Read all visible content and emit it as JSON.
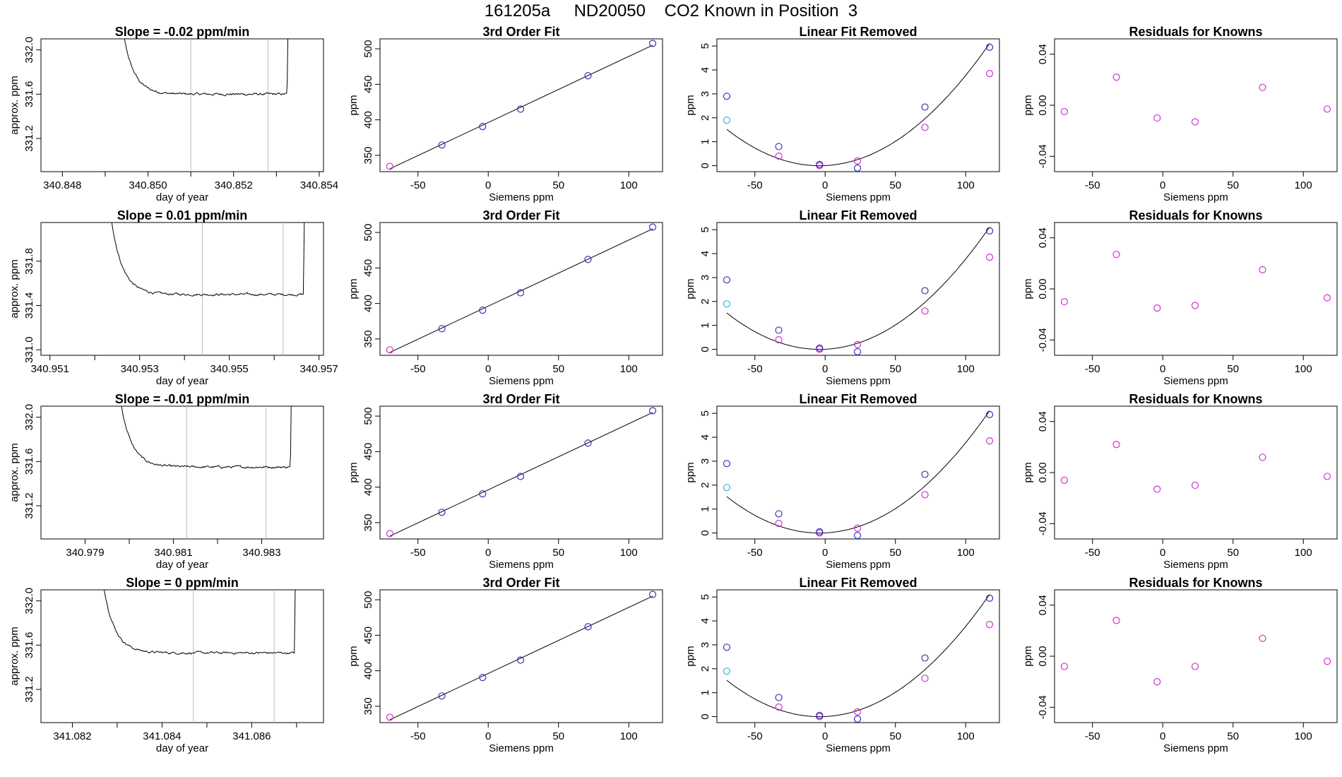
{
  "title": "161205a     ND20050    CO2 Known in Position  3",
  "colors": {
    "line": "#000000",
    "pink": "#cc33cc",
    "cyan": "#22bbdd",
    "blue": "#3333bb",
    "grid": "#bbbbbb",
    "red": "#cc2222"
  },
  "chart_data": {
    "type": "multi",
    "rows": [
      {
        "time_series": {
          "title": "Slope =  -0.02  ppm/min",
          "xlabel": "day of year",
          "ylabel": "approx. ppm",
          "xlim": [
            340.8475,
            340.8541
          ],
          "ylim": [
            330.9,
            332.1
          ],
          "xticks": [
            340.848,
            340.849,
            340.85,
            340.851,
            340.852,
            340.853,
            340.854
          ],
          "xticklabels": [
            "340.848",
            "",
            "340.850",
            "",
            "340.852",
            "",
            "340.854"
          ],
          "yticks": [
            331.2,
            331.6,
            332.0
          ],
          "yticklabels": [
            "331.2",
            "331.6",
            "332.0"
          ],
          "vlines": [
            340.851,
            340.8528
          ],
          "curve": {
            "t0": 340.8493,
            "t1": 340.8533,
            "level": 331.6,
            "drop": 0.9,
            "tau": 0.00025,
            "rise_start": 340.85325,
            "jitter": 0.01
          }
        },
        "fit": {
          "title": "3rd Order Fit"
        },
        "linear_removed": {
          "title": "Linear Fit Removed"
        },
        "residuals": {
          "title": "Residuals for Knowns",
          "y": [
            -0.005,
            0.022,
            -0.01,
            -0.013,
            0.014,
            -0.003
          ]
        }
      },
      {
        "time_series": {
          "title": "Slope =  0.01  ppm/min",
          "xlabel": "day of year",
          "ylabel": "approx. ppm",
          "xlim": [
            340.9508,
            340.9571
          ],
          "ylim": [
            330.95,
            332.15
          ],
          "xticks": [
            340.951,
            340.952,
            340.953,
            340.954,
            340.955,
            340.956,
            340.957
          ],
          "xticklabels": [
            "340.951",
            "",
            "340.953",
            "",
            "340.955",
            "",
            "340.957"
          ],
          "yticks": [
            331.0,
            331.4,
            331.8
          ],
          "yticklabels": [
            "331.0",
            "331.4",
            "331.8"
          ],
          "vlines": [
            340.9544,
            340.9562
          ],
          "curve": {
            "t0": 340.9523,
            "t1": 340.9567,
            "level": 331.5,
            "drop": 0.9,
            "tau": 0.00025,
            "rise_start": 340.95665,
            "jitter": 0.01
          }
        },
        "fit": {
          "title": "3rd Order Fit"
        },
        "linear_removed": {
          "title": "Linear Fit Removed"
        },
        "residuals": {
          "title": "Residuals for Knowns",
          "y": [
            -0.01,
            0.027,
            -0.015,
            -0.013,
            0.015,
            -0.007
          ]
        }
      },
      {
        "time_series": {
          "title": "Slope =  -0.01  ppm/min",
          "xlabel": "day of year",
          "ylabel": "approx. ppm",
          "xlim": [
            340.978,
            340.9844
          ],
          "ylim": [
            330.9,
            332.1
          ],
          "xticks": [
            340.979,
            340.98,
            340.981,
            340.982,
            340.983
          ],
          "xticklabels": [
            "340.979",
            "",
            "340.981",
            "",
            "340.983"
          ],
          "yticks": [
            331.2,
            331.6,
            332.0
          ],
          "yticklabels": [
            "331.2",
            "331.6",
            "332.0"
          ],
          "vlines": [
            340.9813,
            340.9831
          ],
          "curve": {
            "t0": 340.9797,
            "t1": 340.9837,
            "level": 331.55,
            "drop": 0.9,
            "tau": 0.00025,
            "rise_start": 340.98365,
            "jitter": 0.01
          }
        },
        "fit": {
          "title": "3rd Order Fit"
        },
        "linear_removed": {
          "title": "Linear Fit Removed"
        },
        "residuals": {
          "title": "Residuals for Knowns",
          "y": [
            -0.006,
            0.022,
            -0.013,
            -0.01,
            0.012,
            -0.003
          ]
        }
      },
      {
        "time_series": {
          "title": "Slope =  0  ppm/min",
          "xlabel": "day of year",
          "ylabel": "approx. ppm",
          "xlim": [
            341.0813,
            341.0876
          ],
          "ylim": [
            330.9,
            332.1
          ],
          "xticks": [
            341.082,
            341.083,
            341.084,
            341.085,
            341.086,
            341.087
          ],
          "xticklabels": [
            "341.082",
            "",
            "341.084",
            "",
            "341.086",
            ""
          ],
          "yticks": [
            331.2,
            331.6,
            332.0
          ],
          "yticklabels": [
            "331.2",
            "331.6",
            "332.0"
          ],
          "vlines": [
            341.0847,
            341.0865
          ],
          "curve": {
            "t0": 341.0826,
            "t1": 341.087,
            "level": 331.53,
            "drop": 0.9,
            "tau": 0.00025,
            "rise_start": 341.08695,
            "jitter": 0.01
          }
        },
        "fit": {
          "title": "3rd Order Fit"
        },
        "linear_removed": {
          "title": "Linear Fit Removed"
        },
        "residuals": {
          "title": "Residuals for Knowns",
          "y": [
            -0.008,
            0.028,
            -0.02,
            -0.008,
            0.014,
            -0.004
          ]
        }
      }
    ],
    "shared": {
      "xlabel_siemens": "Siemens ppm",
      "ylabel_ppm": "ppm",
      "siemens_x": [
        -70,
        -33,
        -4,
        23,
        71,
        117
      ],
      "siemens_xlim": [
        -77,
        124
      ],
      "siemens_xticks": [
        -50,
        0,
        50,
        100
      ],
      "siemens_xticklabels": [
        "-50",
        "0",
        "50",
        "100"
      ],
      "fit_y": [
        334.5,
        364.5,
        390.5,
        415.0,
        462.0,
        507.5
      ],
      "fit_ylim": [
        327,
        514
      ],
      "fit_yticks": [
        350,
        400,
        450,
        500
      ],
      "fit_yticklabels": [
        "350",
        "400",
        "450",
        "500"
      ],
      "fit_point_colors": [
        "pink",
        "blue",
        "blue",
        "blue",
        "blue",
        "blue"
      ],
      "lin_ylim": [
        -0.25,
        5.3
      ],
      "lin_yticks": [
        0,
        1,
        2,
        3,
        4,
        5
      ],
      "lin_yticklabels": [
        "0",
        "1",
        "2",
        "3",
        "4",
        "5"
      ],
      "lin_blue_y": [
        2.9,
        0.8,
        0.05,
        -0.1,
        2.45,
        4.95
      ],
      "lin_pink_y": [
        null,
        0.4,
        0.0,
        0.2,
        1.6,
        3.85
      ],
      "lin_cyan_y": [
        1.9,
        null,
        null,
        null,
        null,
        null
      ],
      "lin_curve_coeffs": [
        0.0003493,
        0.001385,
        0.0
      ],
      "resid_ylim": [
        -0.052,
        0.052
      ],
      "resid_yticks": [
        -0.04,
        0.0,
        0.04
      ],
      "resid_yticklabels": [
        "-0.04",
        "0.00",
        "0.04"
      ]
    }
  }
}
